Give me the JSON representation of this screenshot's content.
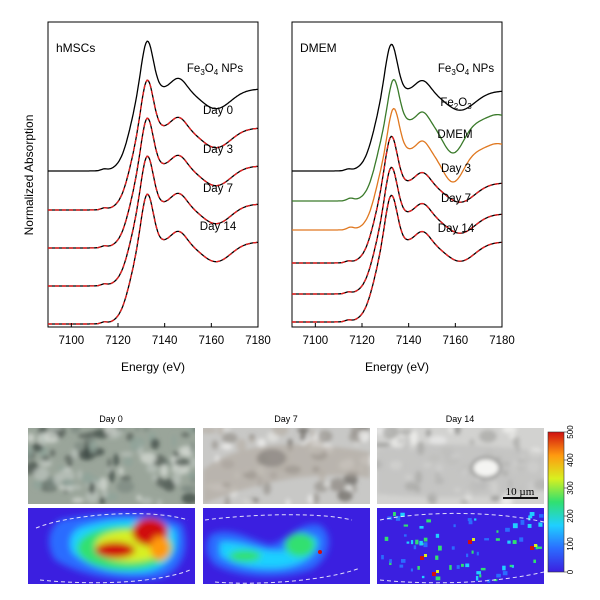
{
  "chart_data": [
    {
      "type": "line",
      "panel_label": "hMSCs",
      "xlabel": "Energy (eV)",
      "ylabel": "Normalized Absorption",
      "xlim": [
        7090,
        7180
      ],
      "xticks": [
        7100,
        7120,
        7140,
        7160,
        7180
      ],
      "legend": "curve labels placed at right of each trace",
      "series": [
        {
          "name": "Fe3O4 NPs",
          "label_main": "Fe",
          "label_sub": "3",
          "label_mid": "O",
          "label_sub2": "4",
          "label_tail": " NPs",
          "color": "#000000",
          "shape": "magnetite",
          "dashed_fit": false
        },
        {
          "name": "Day 0",
          "color": "#000000",
          "shape": "magnetite",
          "dashed_fit": true
        },
        {
          "name": "Day 3",
          "color": "#000000",
          "shape": "magnetite",
          "dashed_fit": true
        },
        {
          "name": "Day 7",
          "color": "#000000",
          "shape": "magnetite",
          "dashed_fit": true
        },
        {
          "name": "Day 14",
          "color": "#000000",
          "shape": "magnetite",
          "dashed_fit": true
        }
      ],
      "fit_color": "#e02020"
    },
    {
      "type": "line",
      "panel_label": "DMEM",
      "xlabel": "Energy (eV)",
      "xlim": [
        7090,
        7180
      ],
      "xticks": [
        7100,
        7120,
        7140,
        7160,
        7180
      ],
      "legend": "curve labels placed at right of each trace",
      "series": [
        {
          "name": "Fe3O4 NPs",
          "label_main": "Fe",
          "label_sub": "3",
          "label_mid": "O",
          "label_sub2": "4",
          "label_tail": " NPs",
          "color": "#000000",
          "shape": "magnetite",
          "dashed_fit": false
        },
        {
          "name": "Fe2O3",
          "label_main": "Fe",
          "label_sub": "2",
          "label_mid": "O",
          "label_sub2": "3",
          "label_tail": "",
          "color": "#3a7a2a",
          "shape": "hematite",
          "dashed_fit": false
        },
        {
          "name": "DMEM",
          "color": "#e07820",
          "shape": "hematite",
          "dashed_fit": false
        },
        {
          "name": "Day 3",
          "color": "#000000",
          "shape": "magnetite",
          "dashed_fit": true
        },
        {
          "name": "Day 7",
          "color": "#000000",
          "shape": "magnetite",
          "dashed_fit": true
        },
        {
          "name": "Day 14",
          "color": "#000000",
          "shape": "magnetite",
          "dashed_fit": true
        }
      ],
      "fit_color": "#e02020"
    },
    {
      "type": "heatmap",
      "panels": [
        {
          "title": "Day 0",
          "level": "high"
        },
        {
          "title": "Day 7",
          "level": "medium"
        },
        {
          "title": "Day 14",
          "level": "low"
        }
      ],
      "scale_bar_label": "10 µm",
      "colorbar": {
        "min": 0,
        "max": 500,
        "ticks": [
          0,
          100,
          200,
          300,
          400,
          500
        ],
        "colors": [
          "#3b1fe0",
          "#2b6cff",
          "#1fd0ff",
          "#30e070",
          "#d8f020",
          "#ff9a10",
          "#d01010"
        ]
      }
    }
  ]
}
